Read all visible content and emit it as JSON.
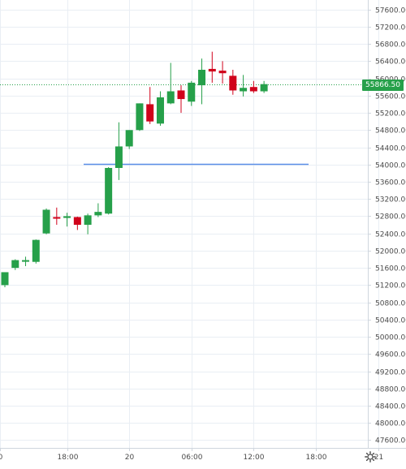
{
  "chart_data": {
    "type": "candlestick",
    "y_ticks": [
      47600,
      48000,
      48400,
      48800,
      49200,
      49600,
      50000,
      50400,
      50800,
      51200,
      51600,
      52000,
      52400,
      52800,
      53200,
      53600,
      54000,
      54400,
      54800,
      55200,
      55600,
      56000,
      56400,
      56800,
      57200,
      57600
    ],
    "y_tick_labels": [
      "47600.00",
      "48000.00",
      "48400.00",
      "48800.00",
      "49200.00",
      "49600.00",
      "50000.00",
      "50400.00",
      "50800.00",
      "51200.00",
      "51600.00",
      "52000.00",
      "52400.00",
      "52800.00",
      "53200.00",
      "53600.00",
      "54000.00",
      "54400.00",
      "54800.00",
      "55200.00",
      "55600.00",
      "56000.00",
      "56400.00",
      "56800.00",
      "57200.00",
      "57600.00"
    ],
    "ylim": [
      47420,
      57820
    ],
    "x_ticks": [
      {
        "hour": 11.55,
        "label": "0"
      },
      {
        "hour": 18,
        "label": "18:00"
      },
      {
        "hour": 24,
        "label": "20"
      },
      {
        "hour": 30,
        "label": "06:00"
      },
      {
        "hour": 36,
        "label": "12:00"
      },
      {
        "hour": 42,
        "label": "18:00"
      },
      {
        "hour": 48,
        "label": "21"
      }
    ],
    "xlim": [
      12.0,
      50.7
    ],
    "candles": [
      {
        "hour": 12.0,
        "open": 51200,
        "high": 51500,
        "low": 51150,
        "close": 51500
      },
      {
        "hour": 13.0,
        "open": 51600,
        "high": 51800,
        "low": 51550,
        "close": 51780
      },
      {
        "hour": 14.0,
        "open": 51760,
        "high": 51860,
        "low": 51640,
        "close": 51780
      },
      {
        "hour": 15.0,
        "open": 51740,
        "high": 52260,
        "low": 51700,
        "close": 52250
      },
      {
        "hour": 16.0,
        "open": 52400,
        "high": 52980,
        "low": 52380,
        "close": 52950
      },
      {
        "hour": 17.0,
        "open": 52780,
        "high": 53000,
        "low": 52600,
        "close": 52760
      },
      {
        "hour": 18.0,
        "open": 52760,
        "high": 52880,
        "low": 52560,
        "close": 52800
      },
      {
        "hour": 19.0,
        "open": 52780,
        "high": 52790,
        "low": 52480,
        "close": 52600
      },
      {
        "hour": 20.0,
        "open": 52600,
        "high": 52860,
        "low": 52380,
        "close": 52820
      },
      {
        "hour": 21.0,
        "open": 52820,
        "high": 53100,
        "low": 52780,
        "close": 52900
      },
      {
        "hour": 22.0,
        "open": 52860,
        "high": 53940,
        "low": 52840,
        "close": 53920
      },
      {
        "hour": 23.0,
        "open": 53920,
        "high": 54980,
        "low": 53640,
        "close": 54420
      },
      {
        "hour": 24.0,
        "open": 54420,
        "high": 54800,
        "low": 54360,
        "close": 54800
      },
      {
        "hour": 25.0,
        "open": 54800,
        "high": 55420,
        "low": 54780,
        "close": 55420
      },
      {
        "hour": 26.0,
        "open": 55400,
        "high": 55800,
        "low": 54940,
        "close": 55000
      },
      {
        "hour": 27.0,
        "open": 54950,
        "high": 55700,
        "low": 54900,
        "close": 55560
      },
      {
        "hour": 28.0,
        "open": 55420,
        "high": 56360,
        "low": 55400,
        "close": 55700
      },
      {
        "hour": 29.0,
        "open": 55720,
        "high": 55840,
        "low": 55200,
        "close": 55520
      },
      {
        "hour": 30.0,
        "open": 55460,
        "high": 55940,
        "low": 55360,
        "close": 55900
      },
      {
        "hour": 31.0,
        "open": 55840,
        "high": 56460,
        "low": 55400,
        "close": 56200
      },
      {
        "hour": 32.0,
        "open": 56220,
        "high": 56620,
        "low": 55900,
        "close": 56160
      },
      {
        "hour": 33.0,
        "open": 56180,
        "high": 56400,
        "low": 55880,
        "close": 56120
      },
      {
        "hour": 34.0,
        "open": 56060,
        "high": 56200,
        "low": 55620,
        "close": 55720
      },
      {
        "hour": 35.0,
        "open": 55700,
        "high": 56080,
        "low": 55580,
        "close": 55780
      },
      {
        "hour": 36.0,
        "open": 55800,
        "high": 55940,
        "low": 55660,
        "close": 55700
      },
      {
        "hour": 37.0,
        "open": 55700,
        "high": 55940,
        "low": 55660,
        "close": 55866.5
      }
    ],
    "bull_color": "#26a04a",
    "bear_color": "#d0021b",
    "last_price": 55866.5,
    "last_price_label": "55866.50",
    "horizontal_line": {
      "price": 54010,
      "from_hour": 19.6,
      "to_hour": 41.3,
      "color": "#5b8fe8"
    },
    "grid": true,
    "grid_color": "#e9eef4",
    "axis_color": "#cfd6de",
    "text_color": "#4a4a4a"
  }
}
